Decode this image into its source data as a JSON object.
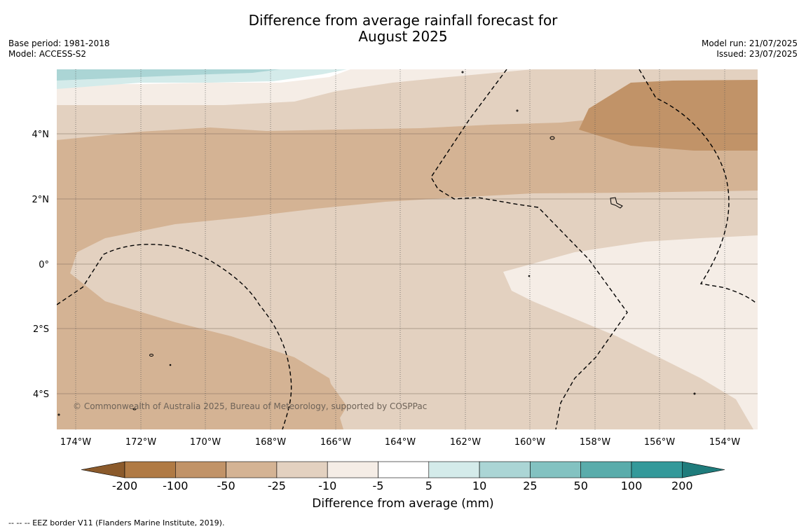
{
  "title": {
    "line1": "Difference from average rainfall forecast for",
    "line2": "August 2025"
  },
  "meta": {
    "base_period": "Base period: 1981-2018",
    "model": "Model: ACCESS-S2",
    "model_run": "Model run: 21/07/2025",
    "issued": "Issued: 23/07/2025"
  },
  "map": {
    "lat_labels": [
      "4°N",
      "2°N",
      "0°",
      "2°S",
      "4°S"
    ],
    "lon_labels": [
      "174°W",
      "172°W",
      "170°W",
      "168°W",
      "166°W",
      "164°W",
      "162°W",
      "160°W",
      "158°W",
      "156°W",
      "154°W"
    ],
    "copyright": "© Commonwealth of Australia 2025, Bureau of Meteorology, supported by COSPPac",
    "legend_line": "EEZ border",
    "colors": {
      "ocean_border": "#000000",
      "grid": "#7a6a5a"
    }
  },
  "colorbar": {
    "labels": [
      "-200",
      "-100",
      "-50",
      "-25",
      "-10",
      "-5",
      "5",
      "10",
      "25",
      "50",
      "100",
      "200"
    ],
    "colors": [
      "#8b5a2b",
      "#b07a44",
      "#c19368",
      "#d4b394",
      "#e3d1c0",
      "#f5ede6",
      "#ffffff",
      "#d4ebea",
      "#abd5d5",
      "#83c2c1",
      "#5aacab",
      "#34999a",
      "#1f7c7c"
    ],
    "title": "Difference from average (mm)"
  },
  "footnote": "--  --  -- EEZ border V11 (Flanders Marine Institute, 2019)."
}
